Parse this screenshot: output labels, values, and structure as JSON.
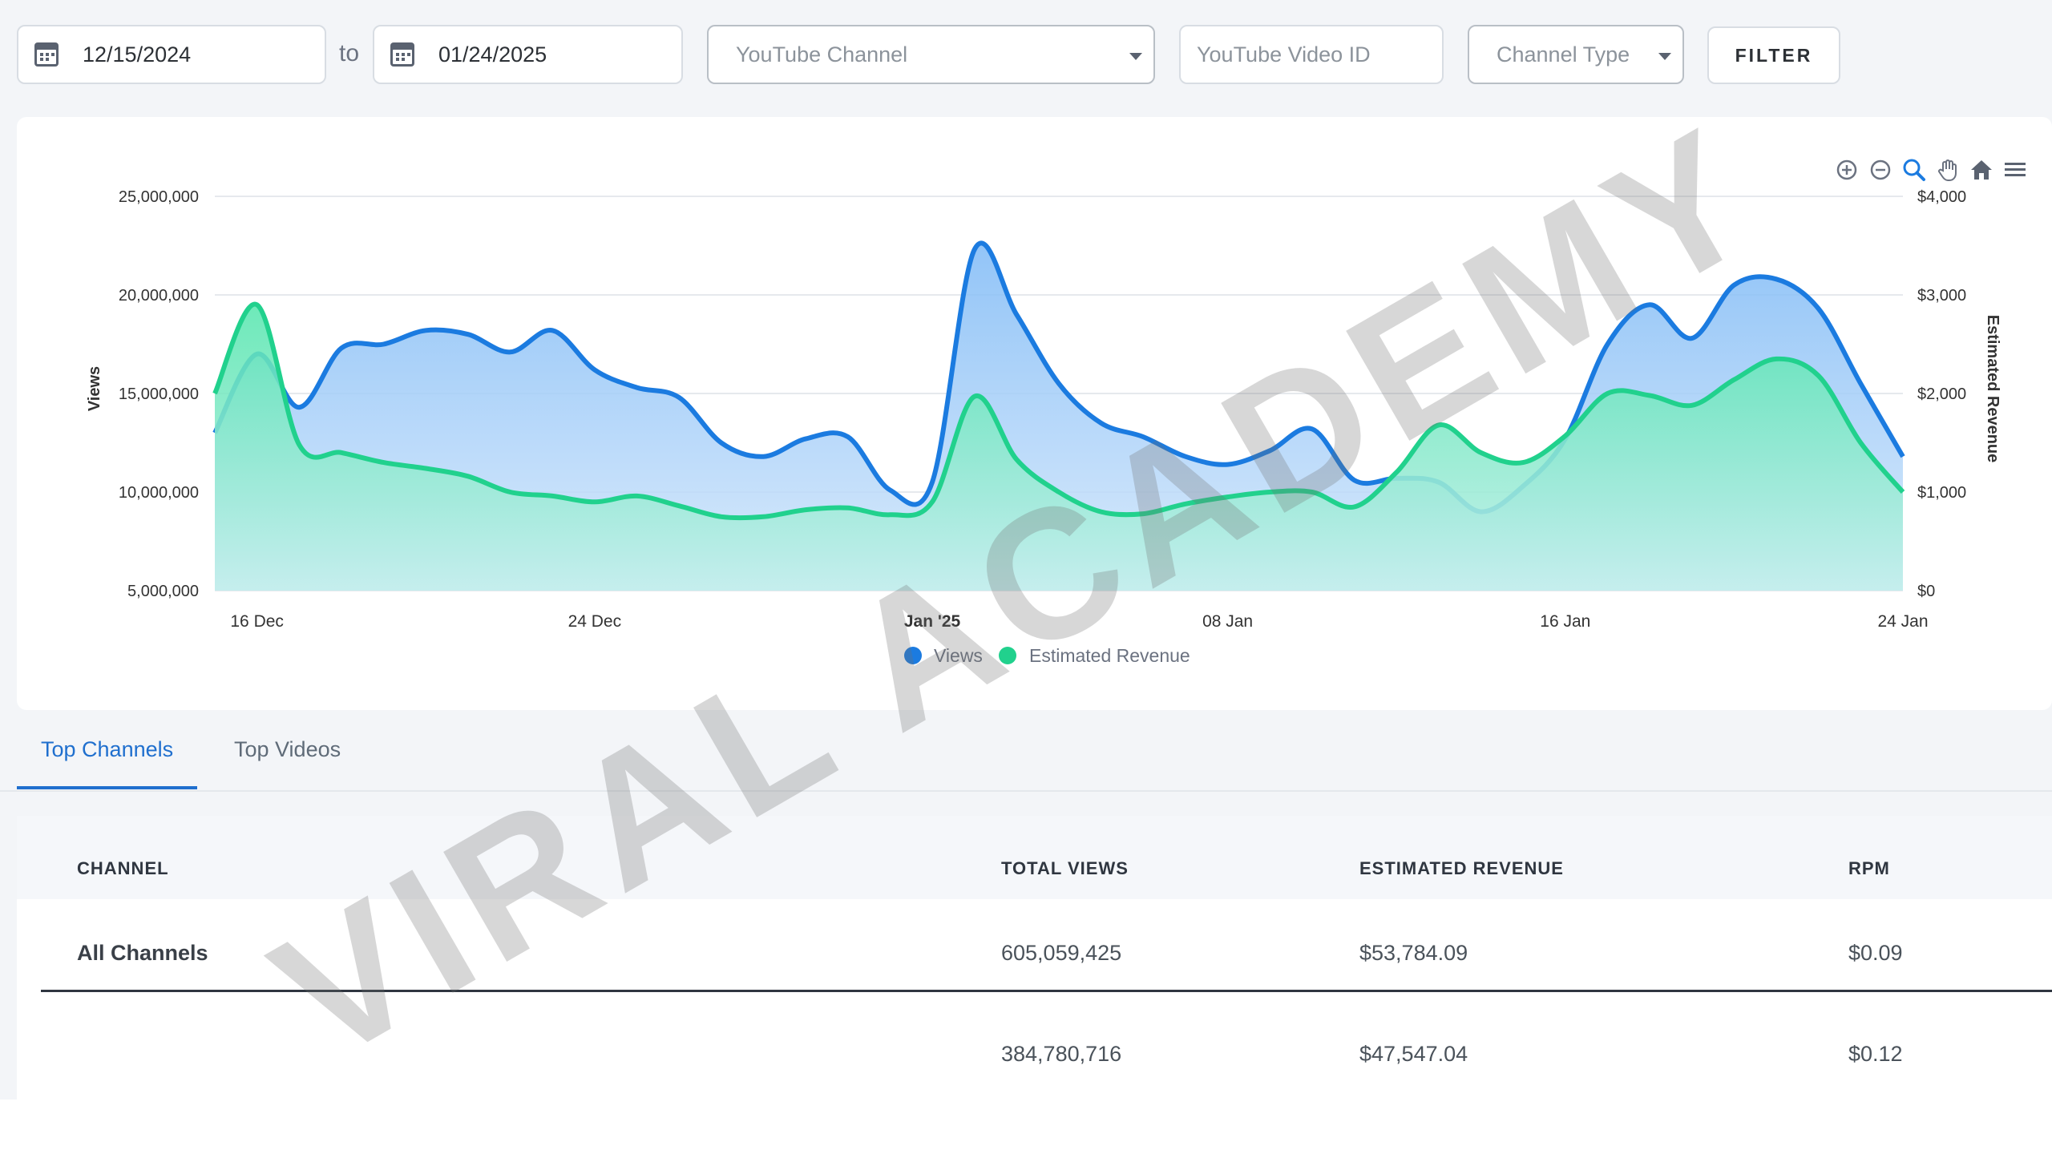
{
  "filters": {
    "start_date": "12/15/2024",
    "to_label": "to",
    "end_date": "01/24/2025",
    "channel_placeholder": "YouTube Channel",
    "video_id_placeholder": "YouTube Video ID",
    "channel_type_placeholder": "Channel Type",
    "filter_label": "FILTER"
  },
  "toolbar": {
    "icons": [
      "zoom-in-icon",
      "zoom-out-icon",
      "magnifier-icon",
      "pan-hand-icon",
      "home-icon",
      "menu-icon"
    ]
  },
  "chart_data": {
    "type": "area",
    "x_ticks": [
      "16 Dec",
      "24 Dec",
      "Jan '25",
      "08 Jan",
      "16 Jan",
      "24 Jan"
    ],
    "x_start": "2024-12-15",
    "x_end": "2025-01-24",
    "y_left": {
      "label": "Views",
      "range": [
        5000000,
        25000000
      ],
      "ticks": [
        "5,000,000",
        "10,000,000",
        "15,000,000",
        "20,000,000",
        "25,000,000"
      ]
    },
    "y_right": {
      "label": "Estimated Revenue",
      "range": [
        0,
        4000
      ],
      "ticks": [
        "$0",
        "$1,000",
        "$2,000",
        "$3,000",
        "$4,000"
      ]
    },
    "legend_position": "bottom-center",
    "grid": true,
    "series": [
      {
        "name": "Views",
        "axis": "left",
        "color": "#1b7be0",
        "values": [
          13000000,
          17000000,
          14300000,
          17300000,
          17500000,
          18200000,
          18000000,
          17100000,
          18200000,
          16200000,
          15300000,
          14800000,
          12500000,
          11800000,
          12700000,
          12800000,
          10100000,
          10500000,
          22300000,
          19000000,
          15500000,
          13500000,
          12800000,
          11800000,
          11400000,
          12100000,
          13200000,
          10600000,
          10700000,
          10500000,
          9000000,
          10300000,
          12700000,
          17500000,
          19500000,
          17800000,
          20500000,
          20800000,
          19300000,
          15500000,
          11800000
        ]
      },
      {
        "name": "Estimated Revenue",
        "axis": "right",
        "color": "#21d18d",
        "values": [
          2000,
          2900,
          1480,
          1400,
          1300,
          1240,
          1160,
          1000,
          960,
          900,
          960,
          860,
          750,
          750,
          820,
          840,
          770,
          900,
          1970,
          1330,
          1000,
          800,
          780,
          880,
          950,
          1000,
          1000,
          850,
          1200,
          1680,
          1400,
          1300,
          1570,
          2000,
          1980,
          1880,
          2140,
          2350,
          2180,
          1500,
          1000
        ]
      }
    ]
  },
  "tabs": [
    {
      "label": "Top Channels",
      "active": true
    },
    {
      "label": "Top Videos",
      "active": false
    }
  ],
  "table": {
    "headers": {
      "channel": "CHANNEL",
      "views": "TOTAL VIEWS",
      "revenue": "ESTIMATED REVENUE",
      "rpm": "RPM"
    },
    "rows": [
      {
        "channel": "All Channels",
        "views": "605,059,425",
        "revenue": "$53,784.09",
        "rpm": "$0.09"
      },
      {
        "channel": "",
        "views": "384,780,716",
        "revenue": "$47,547.04",
        "rpm": "$0.12"
      }
    ]
  },
  "watermark": "VIRAL ACADEMY"
}
